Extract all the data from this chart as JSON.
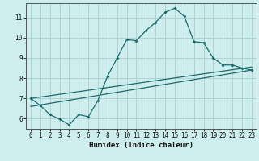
{
  "xlabel": "Humidex (Indice chaleur)",
  "background_color": "#ceeeed",
  "grid_color": "#afd4d3",
  "line_color": "#1a6b6b",
  "xlim": [
    -0.5,
    23.5
  ],
  "ylim": [
    5.5,
    11.7
  ],
  "yticks": [
    6,
    7,
    8,
    9,
    10,
    11
  ],
  "xticks": [
    0,
    1,
    2,
    3,
    4,
    5,
    6,
    7,
    8,
    9,
    10,
    11,
    12,
    13,
    14,
    15,
    16,
    17,
    18,
    19,
    20,
    21,
    22,
    23
  ],
  "series1_x": [
    0,
    1,
    2,
    3,
    4,
    5,
    6,
    7,
    8,
    9,
    10,
    11,
    12,
    13,
    14,
    15,
    16,
    17,
    18,
    19,
    20,
    21,
    22,
    23
  ],
  "series1_y": [
    7.0,
    6.65,
    6.2,
    5.98,
    5.7,
    6.2,
    6.1,
    6.9,
    8.1,
    9.0,
    9.9,
    9.85,
    10.35,
    10.75,
    11.25,
    11.45,
    11.05,
    9.8,
    9.75,
    9.0,
    8.65,
    8.65,
    8.5,
    8.4
  ],
  "series2_x": [
    0,
    23
  ],
  "series2_y": [
    6.6,
    8.4
  ],
  "series3_x": [
    0,
    23
  ],
  "series3_y": [
    7.0,
    8.55
  ]
}
